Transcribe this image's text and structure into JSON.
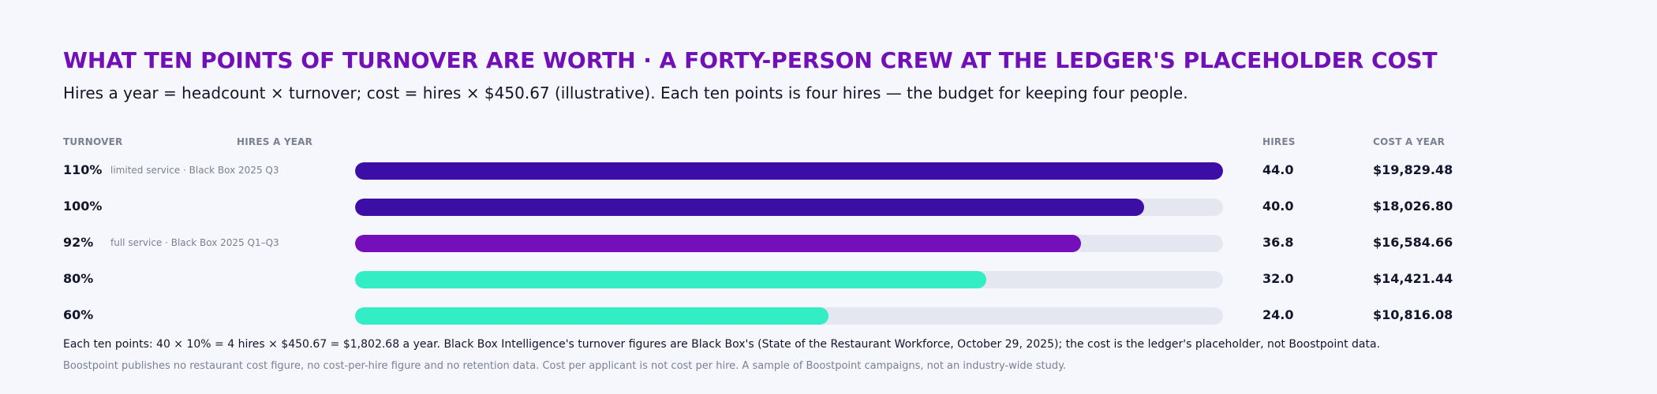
{
  "title": "WHAT TEN POINTS OF TURNOVER ARE WORTH · A FORTY-PERSON CREW AT THE LEDGER'S PLACEHOLDER COST",
  "subtitle": "Hires a year = headcount × turnover; cost = hires × $450.67 (illustrative). Each ten points is four hires — the budget for keeping four people.",
  "headers": {
    "turnover": "TURNOVER",
    "hires_a_year": "HIRES A YEAR",
    "hires": "HIRES",
    "cost": "COST A YEAR"
  },
  "colors": {
    "dark_purple": "#3c0ea6",
    "purple": "#740fbb",
    "teal": "#33eec4",
    "track": "#e5e7f0"
  },
  "chart_data": {
    "type": "bar",
    "orientation": "horizontal",
    "x_max": 44,
    "categories": [
      "110%",
      "100%",
      "92%",
      "80%",
      "60%"
    ],
    "series": [
      {
        "values": [
          44.0,
          40.0,
          36.8,
          32.0,
          24.0
        ]
      }
    ],
    "rows": [
      {
        "turnover": "110%",
        "note": "limited service · Black Box 2025 Q3",
        "hires": "44.0",
        "cost": "$19,829.48",
        "value": 44.0,
        "color": "#3c0ea6"
      },
      {
        "turnover": "100%",
        "note": "",
        "hires": "40.0",
        "cost": "$18,026.80",
        "value": 40.0,
        "color": "#3c0ea6"
      },
      {
        "turnover": "92%",
        "note": "full service · Black Box 2025 Q1–Q3",
        "hires": "36.8",
        "cost": "$16,584.66",
        "value": 36.8,
        "color": "#740fbb"
      },
      {
        "turnover": "80%",
        "note": "",
        "hires": "32.0",
        "cost": "$14,421.44",
        "value": 32.0,
        "color": "#33eec4"
      },
      {
        "turnover": "60%",
        "note": "",
        "hires": "24.0",
        "cost": "$10,816.08",
        "value": 24.0,
        "color": "#33eec4"
      }
    ]
  },
  "footnote": "Each ten points: 40 × 10% = 4 hires × $450.67 = $1,802.68 a year. Black Box Intelligence's turnover figures are Black Box's (State of the Restaurant Workforce, October 29, 2025); the cost is the ledger's placeholder, not Boostpoint data.",
  "disclaimer": "Boostpoint publishes no restaurant cost figure, no cost-per-hire figure and no retention data. Cost per applicant is not cost per hire. A sample of Boostpoint campaigns, not an industry-wide study."
}
